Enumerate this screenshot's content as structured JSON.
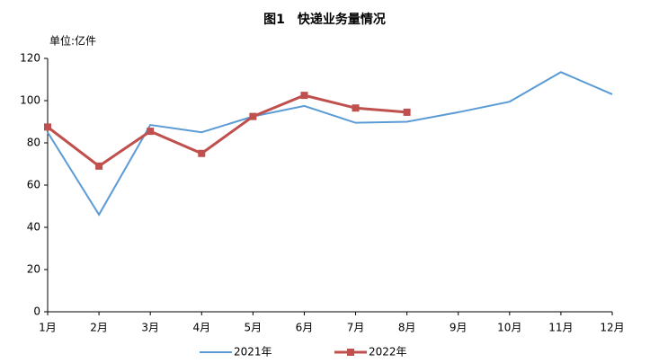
{
  "chart_data": {
    "type": "line",
    "title": "图1　快递业务量情况",
    "y_label": "单位:亿件",
    "categories": [
      "1月",
      "2月",
      "3月",
      "4月",
      "5月",
      "6月",
      "7月",
      "8月",
      "9月",
      "10月",
      "11月",
      "12月"
    ],
    "series": [
      {
        "name": "2021年",
        "color": "#5b9bd5",
        "values": [
          85,
          46,
          88.5,
          85,
          92.5,
          97.5,
          89.5,
          90,
          94.5,
          99.5,
          113.5,
          103
        ]
      },
      {
        "name": "2022年",
        "color": "#c0504d",
        "values": [
          87.5,
          69,
          85.5,
          75,
          92.5,
          102.5,
          96.5,
          94.5,
          null,
          null,
          null,
          null
        ]
      }
    ],
    "ylim": [
      0,
      120
    ],
    "yticks": [
      0,
      20,
      40,
      60,
      80,
      100,
      120
    ],
    "grid": false
  }
}
